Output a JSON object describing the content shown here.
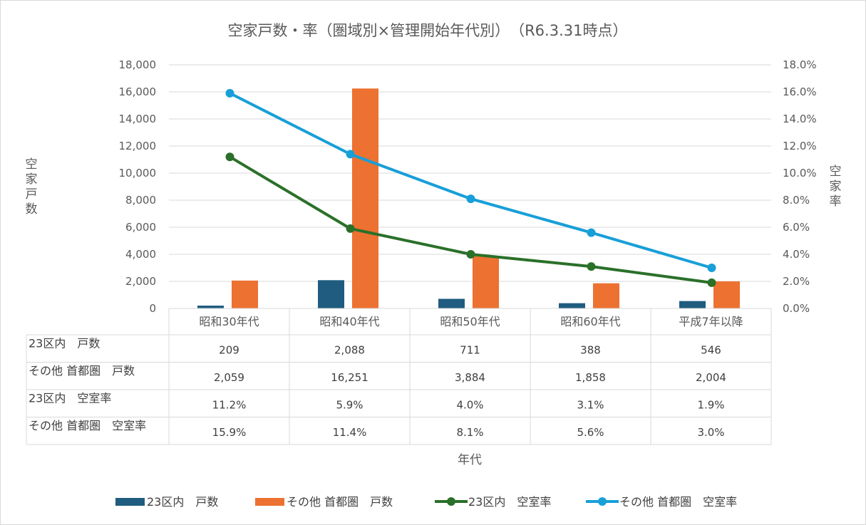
{
  "chart_data": {
    "type": "bar",
    "title": "空家戸数・率（圏域別×管理開始年代別）　（R6.3.31時点）",
    "xlabel": "年代",
    "ylabel": "空家戸数",
    "y2label": "空家率",
    "categories": [
      "昭和30年代",
      "昭和40年代",
      "昭和50年代",
      "昭和60年代",
      "平成7年以降"
    ],
    "ylim": [
      0,
      18000
    ],
    "y_ticks": [
      "0",
      "2,000",
      "4,000",
      "6,000",
      "8,000",
      "10,000",
      "12,000",
      "14,000",
      "16,000",
      "18,000"
    ],
    "y2lim": [
      0,
      0.18
    ],
    "y2_ticks": [
      "0.0%",
      "2.0%",
      "4.0%",
      "6.0%",
      "8.0%",
      "10.0%",
      "12.0%",
      "14.0%",
      "16.0%",
      "18.0%"
    ],
    "grid": true,
    "legend_position": "bottom",
    "series": [
      {
        "name": "23区内　戸数",
        "type": "bar",
        "axis": "left",
        "color": "#1f5c80",
        "values": [
          209,
          2088,
          711,
          388,
          546
        ],
        "labels": [
          "209",
          "2,088",
          "711",
          "388",
          "546"
        ]
      },
      {
        "name": "その他 首都圏　戸数",
        "type": "bar",
        "axis": "left",
        "color": "#ed7131",
        "values": [
          2059,
          16251,
          3884,
          1858,
          2004
        ],
        "labels": [
          "2,059",
          "16,251",
          "3,884",
          "1,858",
          "2,004"
        ]
      },
      {
        "name": "23区内　空室率",
        "type": "line",
        "axis": "right",
        "color": "#2a7029",
        "values": [
          0.112,
          0.059,
          0.04,
          0.031,
          0.019
        ],
        "labels": [
          "11.2%",
          "5.9%",
          "4.0%",
          "3.1%",
          "1.9%"
        ]
      },
      {
        "name": "その他 首都圏　空室率",
        "type": "line",
        "axis": "right",
        "color": "#189fd8",
        "values": [
          0.159,
          0.114,
          0.081,
          0.056,
          0.03
        ],
        "labels": [
          "15.9%",
          "11.4%",
          "8.1%",
          "5.6%",
          "3.0%"
        ]
      }
    ]
  }
}
